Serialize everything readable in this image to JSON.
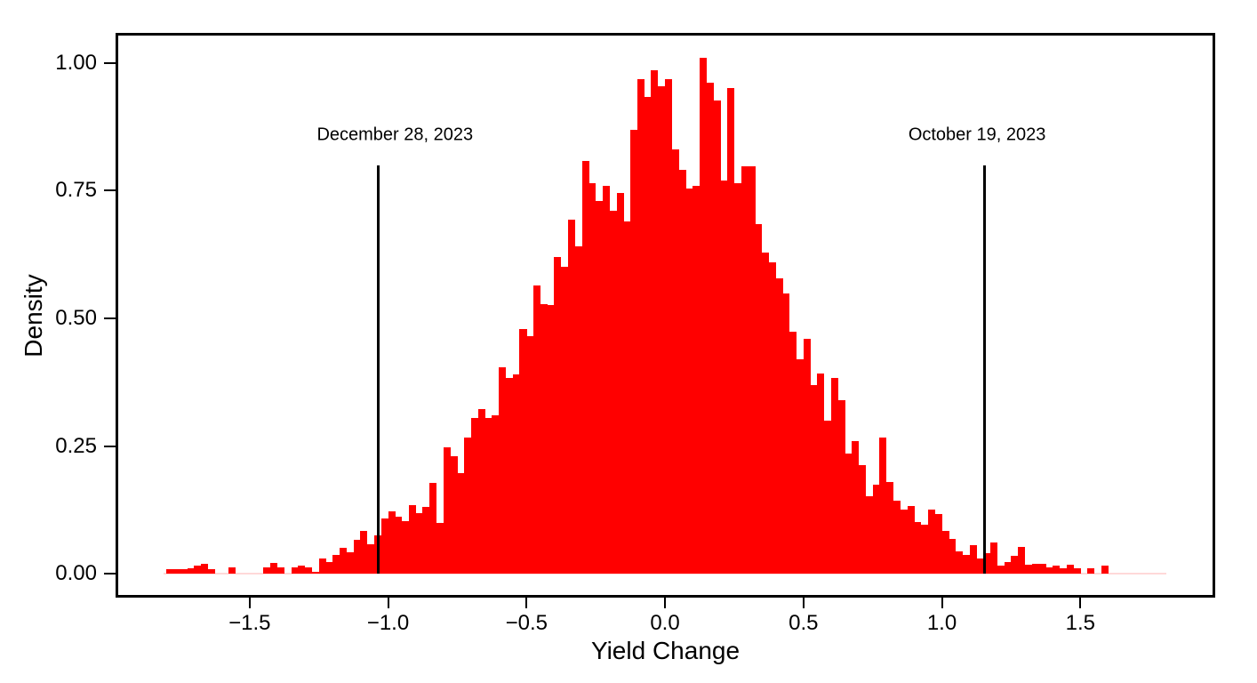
{
  "chart_data": {
    "type": "bar",
    "subtype": "histogram",
    "title": "",
    "xlabel": "Yield Change",
    "ylabel": "Density",
    "bar_color": "#FF0000",
    "baseline_hairline_color": "#FFD9D9",
    "baseline_hairline_extent": [
      -1.81,
      1.81
    ],
    "axis_color": "#000000",
    "xlim": [
      -1.984,
      1.987
    ],
    "ylim": [
      -0.047,
      1.059
    ],
    "x_ticks": [
      -1.5,
      -1.0,
      -0.5,
      0.0,
      0.5,
      1.0,
      1.5
    ],
    "x_tick_labels": [
      "−1.5",
      "−1.0",
      "−0.5",
      "0.0",
      "0.5",
      "1.0",
      "1.5"
    ],
    "y_ticks": [
      0.0,
      0.25,
      0.5,
      0.75,
      1.0
    ],
    "y_tick_labels": [
      "0.00",
      "0.25",
      "0.50",
      "0.75",
      "1.00"
    ],
    "grid": false,
    "legend": false,
    "bin_start": -1.8,
    "bin_width": 0.025,
    "densities": [
      0.008,
      0.009,
      0.008,
      0.01,
      0.015,
      0.02,
      0.009,
      0,
      0,
      0.012,
      0,
      0,
      0,
      0,
      0.013,
      0.021,
      0.013,
      0,
      0.013,
      0.016,
      0.012,
      0.004,
      0.03,
      0.022,
      0.036,
      0.05,
      0.042,
      0.067,
      0.083,
      0.058,
      0.075,
      0.108,
      0.122,
      0.112,
      0.102,
      0.134,
      0.118,
      0.13,
      0.178,
      0.1,
      0.247,
      0.23,
      0.197,
      0.267,
      0.305,
      0.322,
      0.305,
      0.31,
      0.404,
      0.383,
      0.39,
      0.479,
      0.465,
      0.565,
      0.528,
      0.526,
      0.62,
      0.601,
      0.694,
      0.641,
      0.809,
      0.765,
      0.73,
      0.76,
      0.71,
      0.745,
      0.69,
      0.87,
      0.968,
      0.933,
      0.985,
      0.955,
      0.968,
      0.83,
      0.79,
      0.755,
      0.76,
      1.01,
      0.961,
      0.927,
      0.77,
      0.951,
      0.765,
      0.797,
      0.797,
      0.685,
      0.629,
      0.61,
      0.578,
      0.549,
      0.474,
      0.42,
      0.46,
      0.369,
      0.392,
      0.3,
      0.383,
      0.34,
      0.235,
      0.26,
      0.212,
      0.151,
      0.174,
      0.267,
      0.18,
      0.143,
      0.125,
      0.132,
      0.101,
      0.096,
      0.125,
      0.117,
      0.084,
      0.068,
      0.044,
      0.037,
      0.056,
      0.03,
      0.04,
      0.061,
      0.016,
      0.023,
      0.035,
      0.052,
      0.018,
      0.019,
      0.019,
      0.013,
      0.015,
      0.011,
      0.018,
      0.01,
      0,
      0.011,
      0,
      0.015
    ],
    "annotations": [
      {
        "label": "December 28, 2023",
        "x": -1.035,
        "line_y_bottom": 0.0,
        "line_y_top": 0.8,
        "label_x": -0.975,
        "label_y": 0.858
      },
      {
        "label": "October 19, 2023",
        "x": 1.155,
        "line_y_bottom": 0.0,
        "line_y_top": 0.8,
        "label_x": 1.127,
        "label_y": 0.858
      }
    ]
  }
}
